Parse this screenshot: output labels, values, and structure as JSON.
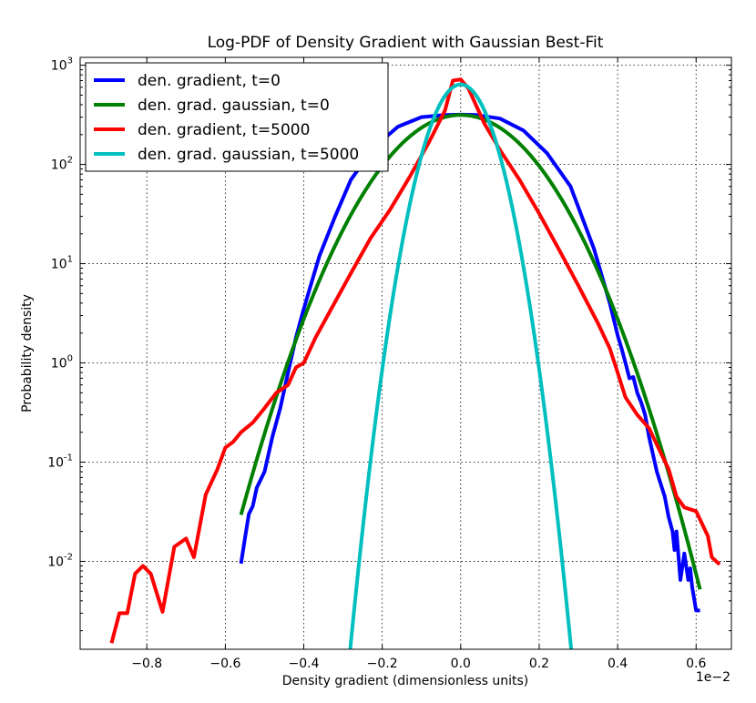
{
  "chart_data": {
    "type": "line",
    "title": "Log-PDF of Density Gradient with Gaussian Best-Fit",
    "xlabel": "Density gradient (dimensionless units)",
    "ylabel": "Probability density",
    "x_offset_label": "1e−2",
    "xlim": [
      -0.97,
      0.69
    ],
    "ylim": [
      0.0013,
      1200
    ],
    "yscale": "log",
    "grid": true,
    "legend_position": "top-left",
    "x_ticks": [
      {
        "value": -0.8,
        "label": "−0.8"
      },
      {
        "value": -0.6,
        "label": "−0.6"
      },
      {
        "value": -0.4,
        "label": "−0.4"
      },
      {
        "value": -0.2,
        "label": "−0.2"
      },
      {
        "value": 0.0,
        "label": "0.0"
      },
      {
        "value": 0.2,
        "label": "0.2"
      },
      {
        "value": 0.4,
        "label": "0.4"
      },
      {
        "value": 0.6,
        "label": "0.6"
      }
    ],
    "y_ticks": [
      {
        "value": 0.01,
        "base": "10",
        "exp": "-2"
      },
      {
        "value": 0.1,
        "base": "10",
        "exp": "-1"
      },
      {
        "value": 1,
        "base": "10",
        "exp": "0"
      },
      {
        "value": 10,
        "base": "10",
        "exp": "1"
      },
      {
        "value": 100,
        "base": "10",
        "exp": "2"
      },
      {
        "value": 1000,
        "base": "10",
        "exp": "3"
      }
    ],
    "series": [
      {
        "name": "den. gradient, t=0",
        "color": "#0000ff",
        "points": [
          [
            -0.56,
            0.0095
          ],
          [
            -0.55,
            0.017
          ],
          [
            -0.54,
            0.03
          ],
          [
            -0.53,
            0.036
          ],
          [
            -0.52,
            0.055
          ],
          [
            -0.5,
            0.08
          ],
          [
            -0.48,
            0.18
          ],
          [
            -0.46,
            0.35
          ],
          [
            -0.44,
            0.8
          ],
          [
            -0.42,
            1.8
          ],
          [
            -0.4,
            3.5
          ],
          [
            -0.38,
            6.5
          ],
          [
            -0.36,
            12
          ],
          [
            -0.32,
            30
          ],
          [
            -0.28,
            70
          ],
          [
            -0.22,
            150
          ],
          [
            -0.16,
            240
          ],
          [
            -0.1,
            300
          ],
          [
            -0.04,
            315
          ],
          [
            0.0,
            318
          ],
          [
            0.04,
            315
          ],
          [
            0.1,
            290
          ],
          [
            0.16,
            220
          ],
          [
            0.22,
            130
          ],
          [
            0.28,
            60
          ],
          [
            0.34,
            14
          ],
          [
            0.38,
            4
          ],
          [
            0.4,
            1.9
          ],
          [
            0.41,
            1.4
          ],
          [
            0.42,
            1.0
          ],
          [
            0.43,
            0.7
          ],
          [
            0.44,
            0.72
          ],
          [
            0.45,
            0.5
          ],
          [
            0.46,
            0.4
          ],
          [
            0.47,
            0.3
          ],
          [
            0.48,
            0.18
          ],
          [
            0.5,
            0.08
          ],
          [
            0.52,
            0.045
          ],
          [
            0.53,
            0.028
          ],
          [
            0.54,
            0.02
          ],
          [
            0.545,
            0.013
          ],
          [
            0.55,
            0.02
          ],
          [
            0.56,
            0.0065
          ],
          [
            0.57,
            0.012
          ],
          [
            0.58,
            0.0065
          ],
          [
            0.585,
            0.0085
          ],
          [
            0.59,
            0.0055
          ],
          [
            0.6,
            0.0032
          ],
          [
            0.61,
            0.0032
          ]
        ]
      },
      {
        "name": "den. grad. gaussian, t=0",
        "color": "#008000",
        "gaussian": {
          "peak": 315,
          "sigma": 0.13,
          "x_from": -0.56,
          "x_to": 0.61
        }
      },
      {
        "name": "den. gradient, t=5000",
        "color": "#ff0000",
        "points": [
          [
            -0.89,
            0.0015
          ],
          [
            -0.87,
            0.003
          ],
          [
            -0.85,
            0.003
          ],
          [
            -0.83,
            0.0075
          ],
          [
            -0.81,
            0.009
          ],
          [
            -0.79,
            0.0075
          ],
          [
            -0.76,
            0.0031
          ],
          [
            -0.73,
            0.014
          ],
          [
            -0.7,
            0.017
          ],
          [
            -0.68,
            0.011
          ],
          [
            -0.65,
            0.047
          ],
          [
            -0.62,
            0.085
          ],
          [
            -0.6,
            0.14
          ],
          [
            -0.58,
            0.16
          ],
          [
            -0.56,
            0.2
          ],
          [
            -0.53,
            0.25
          ],
          [
            -0.5,
            0.35
          ],
          [
            -0.47,
            0.5
          ],
          [
            -0.44,
            0.6
          ],
          [
            -0.42,
            0.9
          ],
          [
            -0.4,
            1.0
          ],
          [
            -0.37,
            1.8
          ],
          [
            -0.33,
            3.5
          ],
          [
            -0.28,
            8
          ],
          [
            -0.23,
            18
          ],
          [
            -0.18,
            35
          ],
          [
            -0.13,
            75
          ],
          [
            -0.08,
            170
          ],
          [
            -0.04,
            350
          ],
          [
            -0.02,
            700
          ],
          [
            0.0,
            720
          ],
          [
            0.02,
            580
          ],
          [
            0.06,
            260
          ],
          [
            0.1,
            140
          ],
          [
            0.15,
            70
          ],
          [
            0.2,
            32
          ],
          [
            0.25,
            14
          ],
          [
            0.3,
            6
          ],
          [
            0.35,
            2.5
          ],
          [
            0.38,
            1.4
          ],
          [
            0.4,
            0.8
          ],
          [
            0.42,
            0.45
          ],
          [
            0.45,
            0.3
          ],
          [
            0.48,
            0.22
          ],
          [
            0.5,
            0.15
          ],
          [
            0.53,
            0.085
          ],
          [
            0.55,
            0.045
          ],
          [
            0.57,
            0.035
          ],
          [
            0.6,
            0.032
          ],
          [
            0.63,
            0.018
          ],
          [
            0.64,
            0.011
          ],
          [
            0.66,
            0.0093
          ]
        ]
      },
      {
        "name": "den. grad. gaussian, t=5000",
        "color": "#00bfbf",
        "gaussian": {
          "peak": 640,
          "sigma": 0.055,
          "x_from": -0.285,
          "x_to": 0.285
        }
      }
    ]
  }
}
